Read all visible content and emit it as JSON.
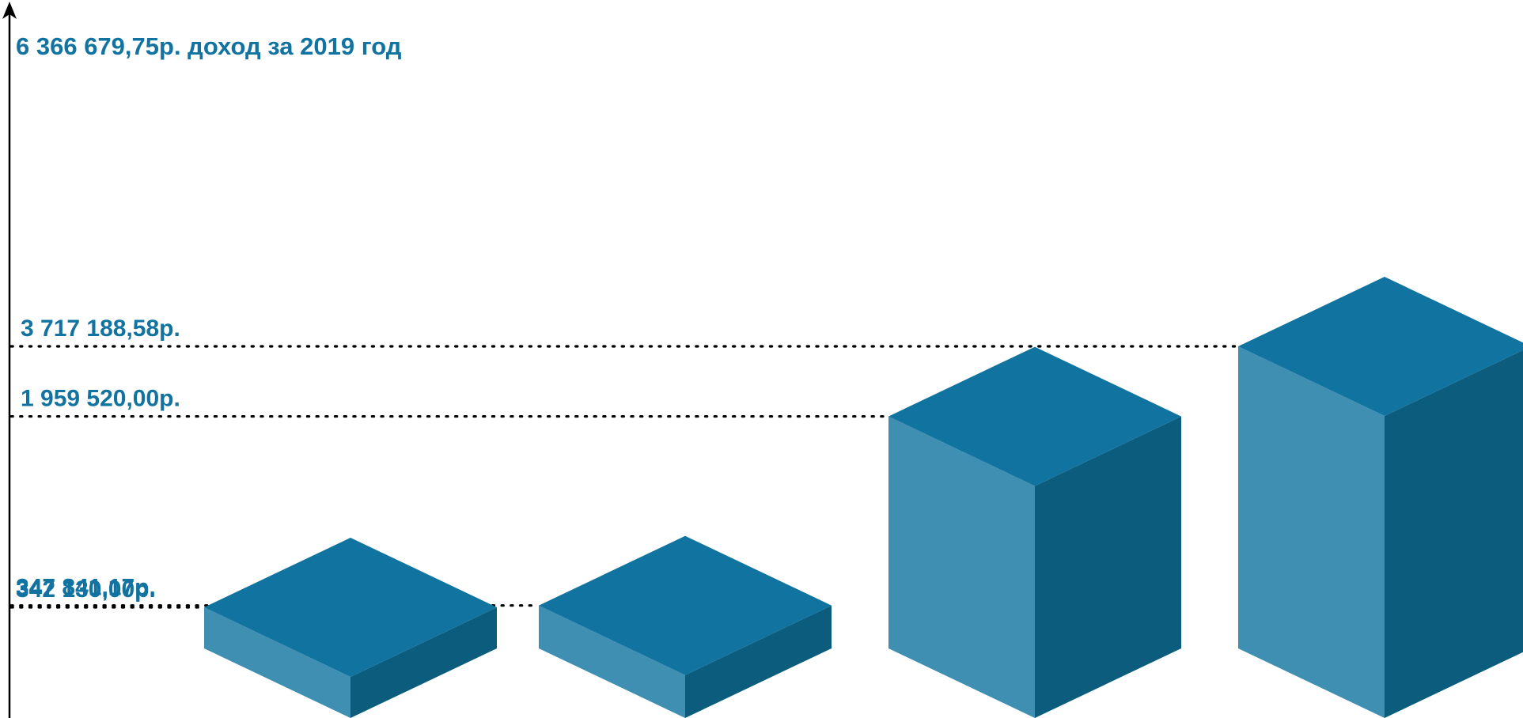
{
  "chart_data": {
    "type": "bar",
    "style": "isometric-3d-boxes",
    "title": "6 366 679,75р. доход за 2019 год",
    "categories": [
      "",
      "",
      "",
      ""
    ],
    "values": [
      342130.0,
      347841.17,
      1959520.0,
      3717188.58
    ],
    "value_labels": [
      "342 130,00р.",
      "347 841,17р.",
      "1 959 520,00р.",
      "3 717 188,58р."
    ],
    "total": 6366679.75,
    "grid": false,
    "reference_lines": "dotted",
    "colors": {
      "top": "#11739f",
      "left": "#3f8fb2",
      "right": "#0c5d7d",
      "label": "#1273a0",
      "axis": "#000000"
    }
  }
}
